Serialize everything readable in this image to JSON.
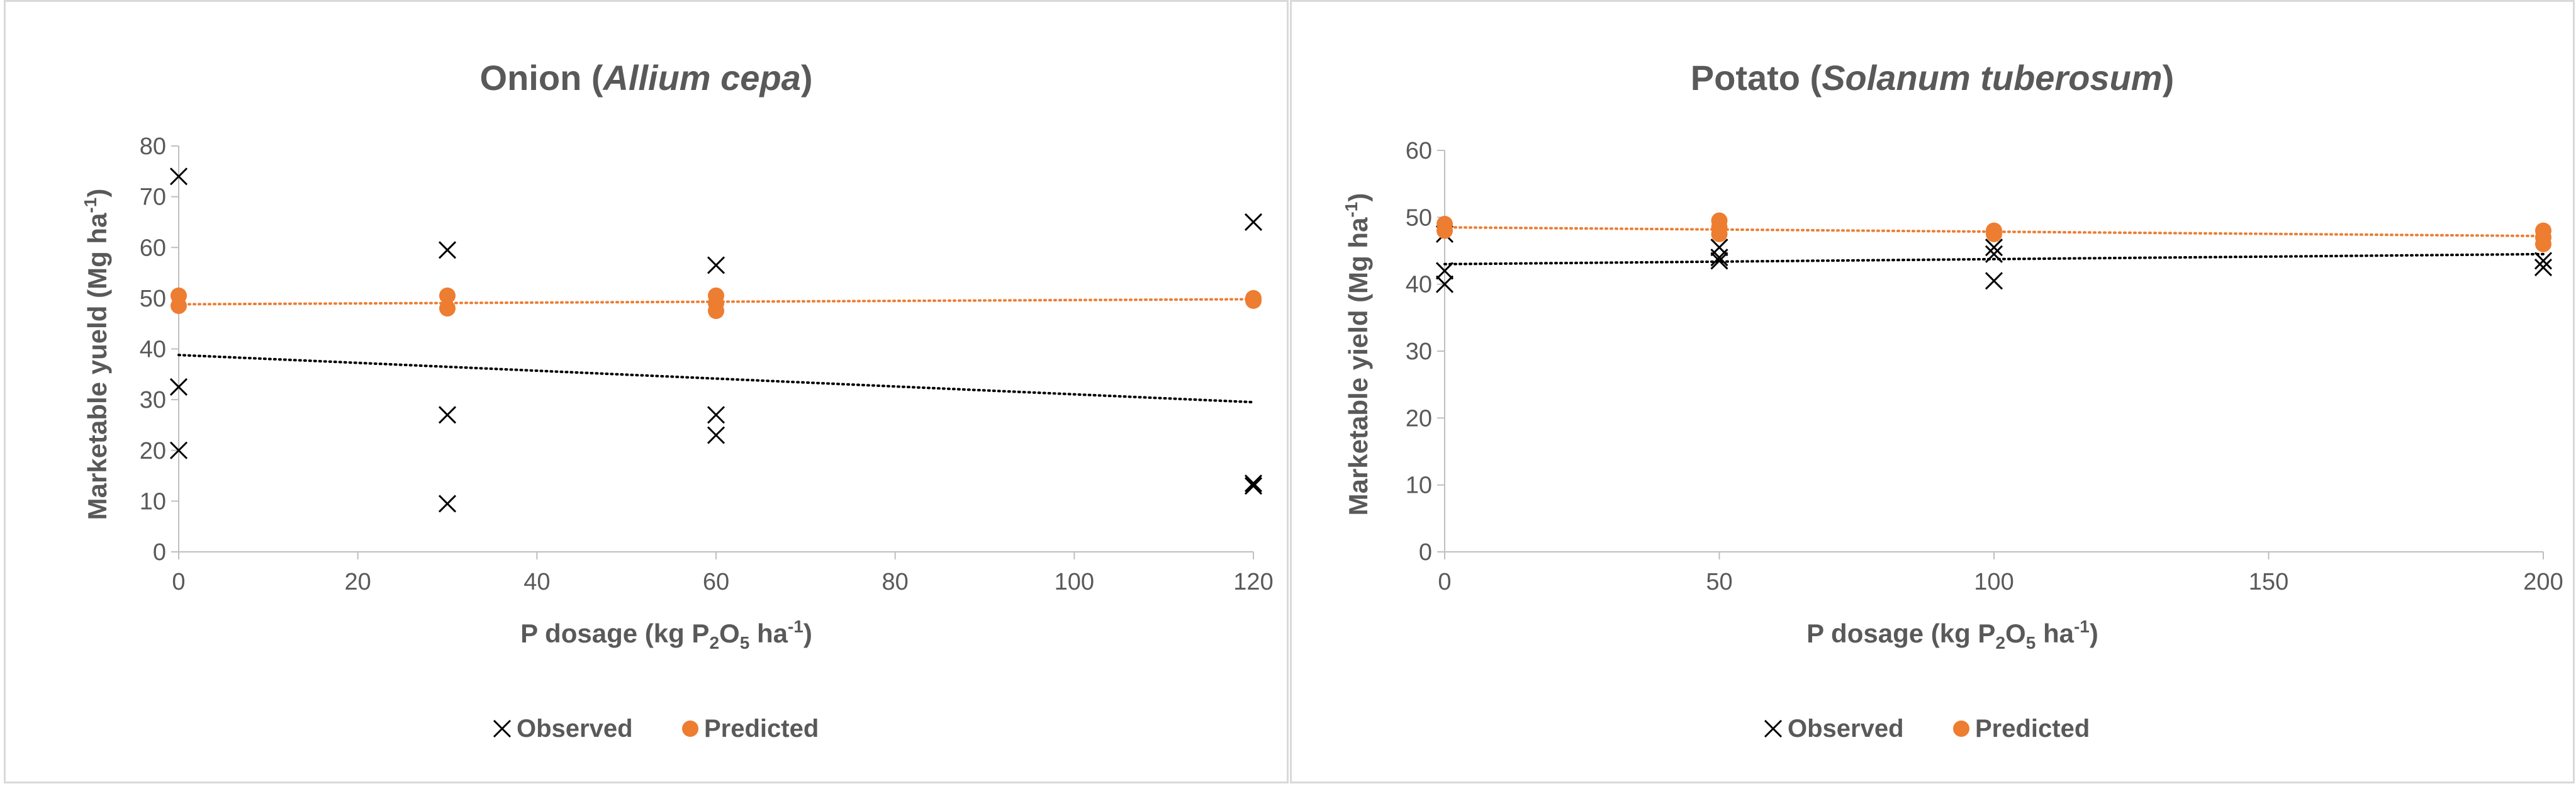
{
  "chart_data": [
    {
      "type": "scatter",
      "title": "Onion (",
      "title_italic": "Allium cepa",
      "title_suffix": ")",
      "xlabel_pre": "P dosage (kg P",
      "xlabel_sub1": "2",
      "xlabel_mid": "O",
      "xlabel_sub2": "5",
      "xlabel_post": " ha",
      "xlabel_sup": "-1",
      "xlabel_end": ")",
      "ylabel_pre": "Marketable yueld (Mg ha",
      "ylabel_sup": "-1",
      "ylabel_end": ")",
      "xlim": [
        0,
        120
      ],
      "ylim": [
        0,
        80
      ],
      "xticks": [
        0,
        20,
        40,
        60,
        80,
        100,
        120
      ],
      "yticks": [
        0,
        10,
        20,
        30,
        40,
        50,
        60,
        70,
        80
      ],
      "legend_position": "bottom",
      "series": [
        {
          "name": "Observed",
          "marker": "x",
          "color": "#000000",
          "points": [
            [
              0,
              74
            ],
            [
              0,
              32.5
            ],
            [
              0,
              20
            ],
            [
              30,
              59.5
            ],
            [
              30,
              27
            ],
            [
              30,
              9.5
            ],
            [
              60,
              56.5
            ],
            [
              60,
              27
            ],
            [
              60,
              23
            ],
            [
              120,
              65
            ],
            [
              120,
              13.5
            ],
            [
              120,
              13
            ]
          ]
        },
        {
          "name": "Predicted",
          "marker": "circle",
          "color": "#ED7D31",
          "points": [
            [
              0,
              50.5
            ],
            [
              0,
              48.5
            ],
            [
              30,
              50.5
            ],
            [
              30,
              48
            ],
            [
              60,
              50.5
            ],
            [
              60,
              49
            ],
            [
              60,
              47.5
            ],
            [
              120,
              50
            ],
            [
              120,
              49.5
            ]
          ]
        }
      ],
      "trendlines": [
        {
          "series": "Observed",
          "color": "#000000",
          "x": [
            0,
            120
          ],
          "y": [
            38.8,
            29.5
          ]
        },
        {
          "series": "Predicted",
          "color": "#ED7D31",
          "x": [
            0,
            120
          ],
          "y": [
            48.8,
            49.8
          ]
        }
      ]
    },
    {
      "type": "scatter",
      "title": "Potato (",
      "title_italic": "Solanum tuberosum",
      "title_suffix": ")",
      "xlabel_pre": "P dosage (kg P",
      "xlabel_sub1": "2",
      "xlabel_mid": "O",
      "xlabel_sub2": "5",
      "xlabel_post": " ha",
      "xlabel_sup": "-1",
      "xlabel_end": ")",
      "ylabel_pre": "Marketable yield (Mg ha",
      "ylabel_sup": "-1",
      "ylabel_end": ")",
      "xlim": [
        0,
        200
      ],
      "ylim": [
        0,
        60
      ],
      "xticks": [
        0,
        50,
        100,
        150,
        200
      ],
      "yticks": [
        0,
        10,
        20,
        30,
        40,
        50,
        60
      ],
      "legend_position": "bottom",
      "series": [
        {
          "name": "Observed",
          "marker": "x",
          "color": "#000000",
          "points": [
            [
              0,
              47.5
            ],
            [
              0,
              42
            ],
            [
              0,
              40
            ],
            [
              50,
              45.5
            ],
            [
              50,
              44
            ],
            [
              50,
              43.5
            ],
            [
              100,
              45.5
            ],
            [
              100,
              44.5
            ],
            [
              100,
              40.5
            ],
            [
              200,
              43.5
            ],
            [
              200,
              42.5
            ]
          ]
        },
        {
          "name": "Predicted",
          "marker": "circle",
          "color": "#ED7D31",
          "points": [
            [
              0,
              49
            ],
            [
              0,
              48
            ],
            [
              50,
              49.5
            ],
            [
              50,
              48.5
            ],
            [
              50,
              47.5
            ],
            [
              100,
              48
            ],
            [
              100,
              47.5
            ],
            [
              200,
              48
            ],
            [
              200,
              47
            ],
            [
              200,
              46
            ]
          ]
        }
      ],
      "trendlines": [
        {
          "series": "Observed",
          "color": "#000000",
          "x": [
            0,
            200
          ],
          "y": [
            43,
            44.5
          ]
        },
        {
          "series": "Predicted",
          "color": "#ED7D31",
          "x": [
            0,
            200
          ],
          "y": [
            48.5,
            47.2
          ]
        }
      ]
    }
  ]
}
